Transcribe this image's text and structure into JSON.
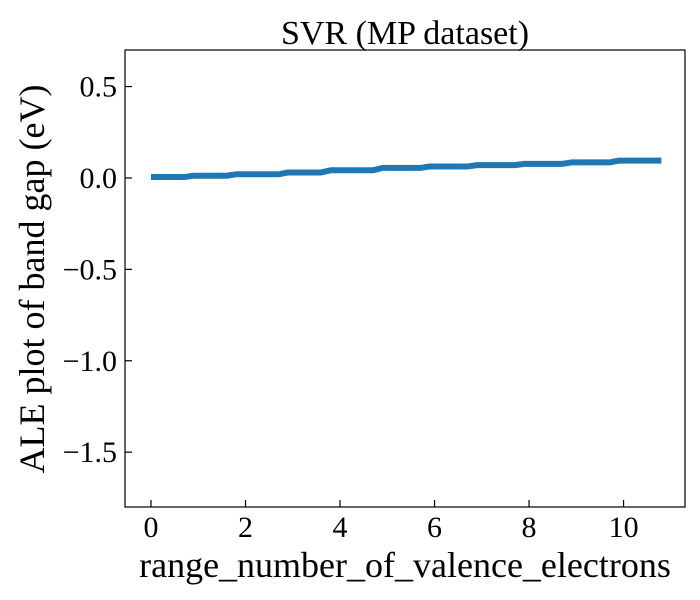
{
  "chart_data": {
    "type": "line",
    "title": "SVR (MP dataset)",
    "xlabel": "range_number_of_valence_electrons",
    "ylabel": "ALE plot of band gap (eV)",
    "xlim": [
      -0.55,
      11.3
    ],
    "ylim": [
      -1.8,
      0.7
    ],
    "xticks": [
      0,
      2,
      4,
      6,
      8,
      10
    ],
    "xtick_labels": [
      "0",
      "2",
      "4",
      "6",
      "8",
      "10"
    ],
    "yticks": [
      0.5,
      0.0,
      -0.5,
      -1.0,
      -1.5
    ],
    "ytick_labels": [
      "0.5",
      "0.0",
      "−0.5",
      "−1.0",
      "−1.5"
    ],
    "grid": false,
    "series": [
      {
        "color": "#1f77b4",
        "x": [
          0,
          0.7,
          0.9,
          1.6,
          1.8,
          2.7,
          2.9,
          3.6,
          3.8,
          4.7,
          4.9,
          5.7,
          5.9,
          6.7,
          6.9,
          7.7,
          7.9,
          8.7,
          8.9,
          9.7,
          9.9,
          10.8
        ],
        "y": [
          0.005,
          0.005,
          0.012,
          0.012,
          0.02,
          0.02,
          0.03,
          0.03,
          0.042,
          0.042,
          0.055,
          0.055,
          0.063,
          0.063,
          0.07,
          0.07,
          0.077,
          0.077,
          0.085,
          0.085,
          0.095,
          0.095
        ]
      }
    ]
  }
}
